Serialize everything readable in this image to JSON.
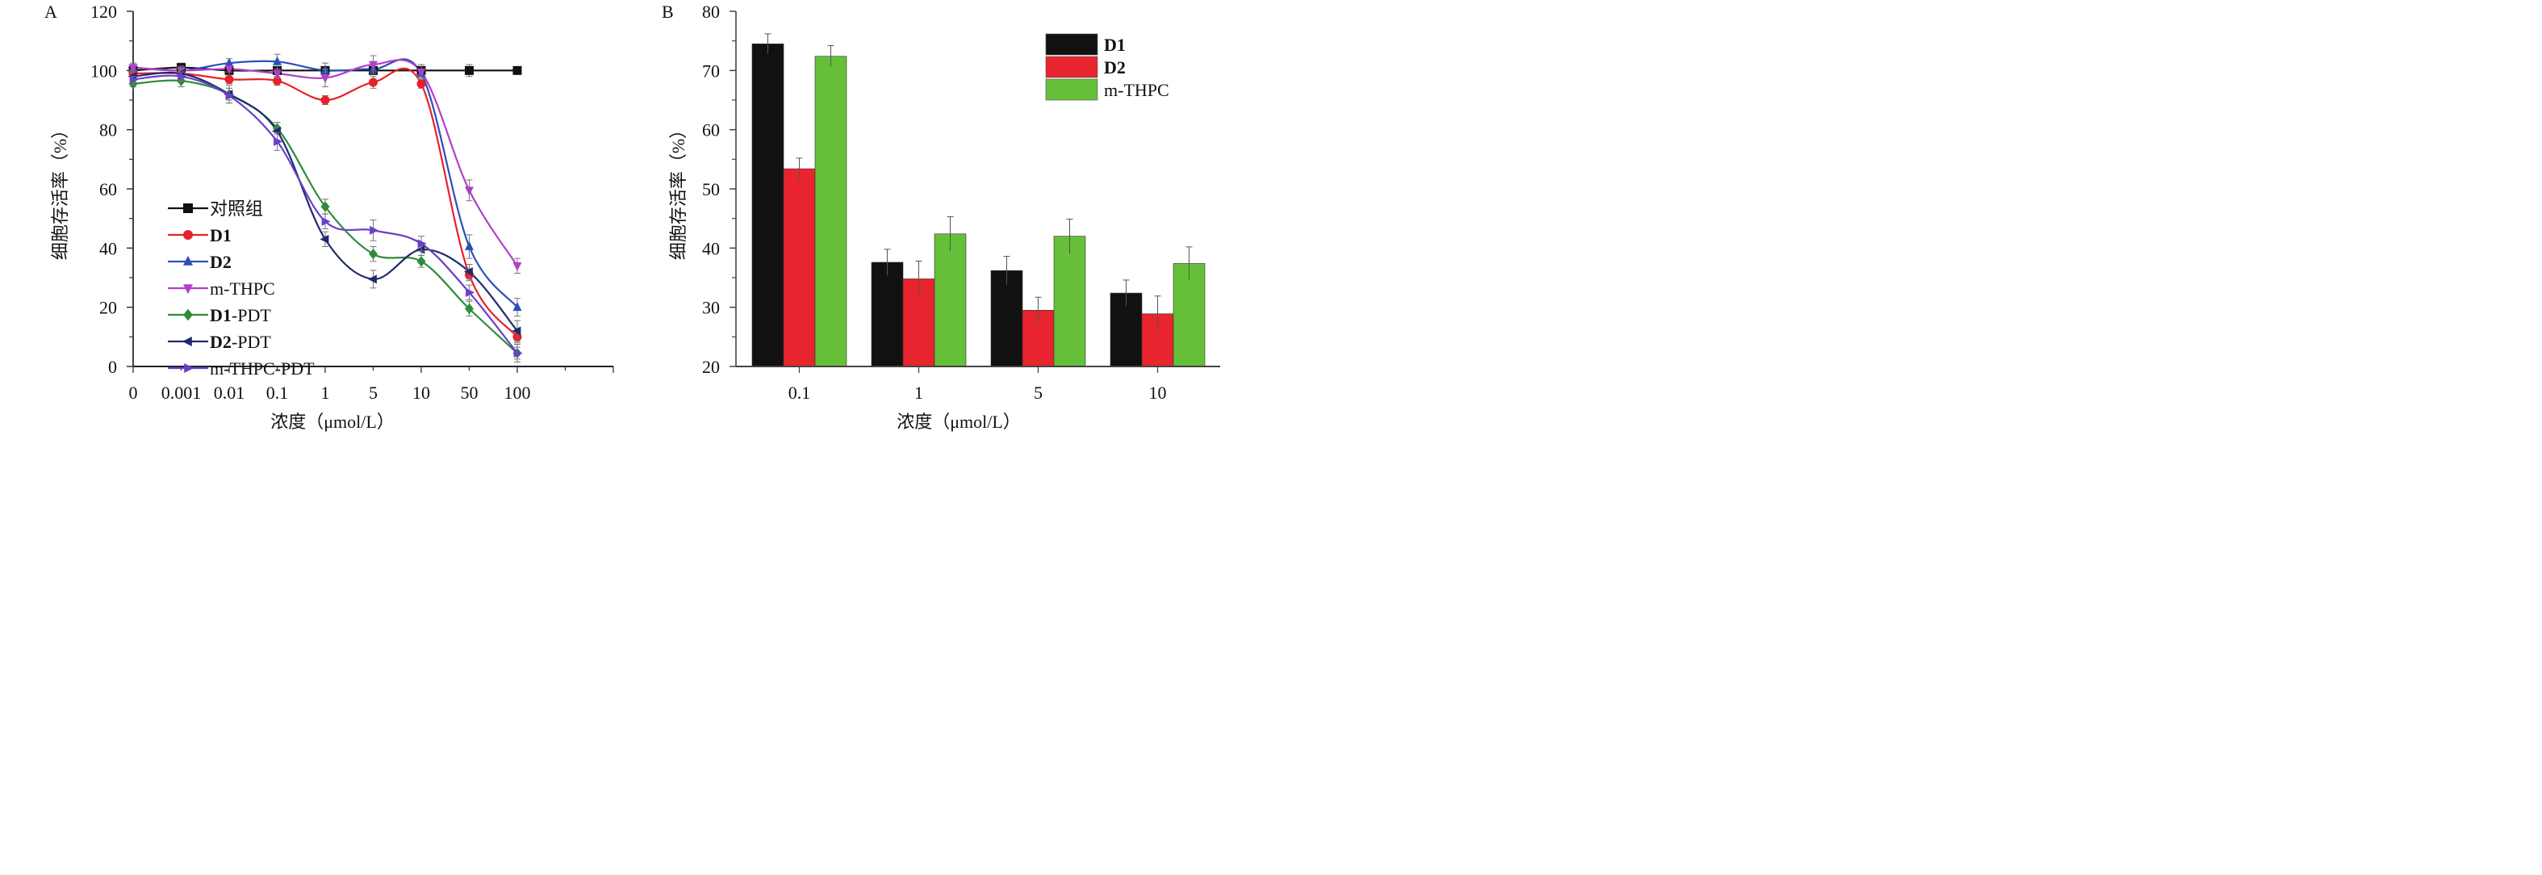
{
  "chart_data": [
    {
      "panel": "A",
      "type": "line",
      "title": "",
      "xlabel": "浓度（μmol/L）",
      "ylabel": "细胞存活率（%）",
      "ylim": [
        0,
        120
      ],
      "yticks": [
        0,
        20,
        40,
        60,
        80,
        100,
        120
      ],
      "x_scale": "categorical",
      "categories": [
        "0",
        "0.001",
        "0.01",
        "0.1",
        "1",
        "5",
        "10",
        "50",
        "100"
      ],
      "grid": false,
      "legend_position": "lower-left",
      "series": [
        {
          "name": "对照组",
          "bold_prefix": "",
          "suffix": "对照组",
          "color": "#111111",
          "marker": "square",
          "values": [
            100,
            101,
            100,
            100,
            100,
            100,
            100,
            100,
            100
          ],
          "errors": [
            1,
            1.5,
            1,
            1,
            1,
            1,
            1,
            2,
            0.5
          ]
        },
        {
          "name": "D1",
          "bold_prefix": "D1",
          "suffix": "",
          "color": "#e8202a",
          "marker": "circle",
          "values": [
            99,
            99,
            97,
            96.5,
            90,
            96,
            95.5,
            31,
            10
          ],
          "errors": [
            1,
            1,
            1.5,
            1.5,
            1.5,
            2,
            1.5,
            2,
            2
          ]
        },
        {
          "name": "D2",
          "bold_prefix": "D2",
          "suffix": "",
          "color": "#2b4fb8",
          "marker": "triangle-up",
          "values": [
            101,
            100,
            102.5,
            103,
            100,
            100.5,
            99,
            40.5,
            20
          ],
          "errors": [
            1.5,
            1.5,
            1.5,
            2.5,
            2.5,
            1.5,
            1.5,
            4,
            3
          ]
        },
        {
          "name": "m-THPC",
          "bold_prefix": "",
          "suffix": "m-THPC",
          "color": "#b040c8",
          "marker": "triangle-down",
          "values": [
            101,
            100,
            100.5,
            99,
            97.5,
            102,
            99.5,
            59.5,
            34
          ],
          "errors": [
            1,
            1,
            1,
            1.5,
            3,
            3,
            2.5,
            3.5,
            2.5
          ]
        },
        {
          "name": "D1-PDT",
          "bold_prefix": "D1",
          "suffix": "-PDT",
          "color": "#2e8b3a",
          "marker": "diamond",
          "values": [
            95.5,
            96.5,
            92,
            80.5,
            54,
            38,
            35.5,
            19.5,
            4.5
          ],
          "errors": [
            1,
            2,
            2,
            2,
            2.5,
            2.5,
            2,
            2.5,
            2
          ]
        },
        {
          "name": "D2-PDT",
          "bold_prefix": "D2",
          "suffix": "-PDT",
          "color": "#1f2a6e",
          "marker": "triangle-left",
          "values": [
            98,
            99,
            92,
            79.5,
            43,
            29.5,
            39.5,
            32,
            12
          ],
          "errors": [
            1,
            1.5,
            3,
            3,
            2.5,
            3,
            2,
            2.5,
            3.5
          ]
        },
        {
          "name": "m-THPC-PDT",
          "bold_prefix": "",
          "suffix": "m-THPC-PDT",
          "color": "#6a3fc8",
          "marker": "triangle-right",
          "values": [
            97,
            98,
            91.5,
            76,
            49,
            46,
            41.5,
            25,
            4.5
          ],
          "errors": [
            1,
            1.5,
            2.5,
            3,
            2.5,
            3.5,
            2.5,
            2.5,
            3
          ]
        }
      ]
    },
    {
      "panel": "B",
      "type": "bar",
      "title": "",
      "xlabel": "浓度（μmol/L）",
      "ylabel": "细胞存活率（%）",
      "ylim": [
        20,
        80
      ],
      "yticks": [
        20,
        30,
        40,
        50,
        60,
        70,
        80
      ],
      "categories": [
        "0.1",
        "1",
        "5",
        "10"
      ],
      "grid": false,
      "legend_position": "top-right",
      "series": [
        {
          "name": "D1",
          "bold": true,
          "color": "#111111",
          "values": [
            74.5,
            37.6,
            36.2,
            32.4
          ],
          "errors": [
            1.7,
            2.2,
            2.4,
            2.2
          ]
        },
        {
          "name": "D2",
          "bold": true,
          "color": "#e8242e",
          "values": [
            53.4,
            34.8,
            29.5,
            28.9
          ],
          "errors": [
            1.8,
            3.0,
            2.2,
            3.0
          ]
        },
        {
          "name": "m-THPC",
          "bold": false,
          "color": "#66bf38",
          "values": [
            72.4,
            42.4,
            42.0,
            37.4
          ],
          "errors": [
            1.8,
            2.9,
            2.9,
            2.8
          ]
        }
      ]
    }
  ]
}
